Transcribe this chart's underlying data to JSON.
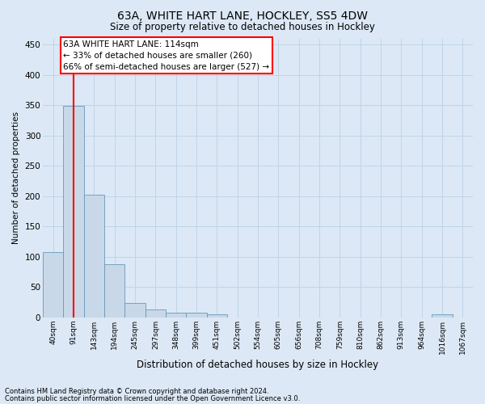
{
  "title_line1": "63A, WHITE HART LANE, HOCKLEY, SS5 4DW",
  "title_line2": "Size of property relative to detached houses in Hockley",
  "xlabel": "Distribution of detached houses by size in Hockley",
  "ylabel": "Number of detached properties",
  "categories": [
    "40sqm",
    "91sqm",
    "143sqm",
    "194sqm",
    "245sqm",
    "297sqm",
    "348sqm",
    "399sqm",
    "451sqm",
    "502sqm",
    "554sqm",
    "605sqm",
    "656sqm",
    "708sqm",
    "759sqm",
    "810sqm",
    "862sqm",
    "913sqm",
    "964sqm",
    "1016sqm",
    "1067sqm"
  ],
  "values": [
    107,
    349,
    202,
    88,
    23,
    13,
    8,
    8,
    5,
    0,
    0,
    0,
    0,
    0,
    0,
    0,
    0,
    0,
    0,
    5,
    0
  ],
  "bar_color": "#c8d8e8",
  "bar_edge_color": "#6699bb",
  "grid_color": "#c0d4e8",
  "background_color": "#dce8f5",
  "property_line_x": 1.0,
  "annotation_line1": "63A WHITE HART LANE: 114sqm",
  "annotation_line2": "← 33% of detached houses are smaller (260)",
  "annotation_line3": "66% of semi-detached houses are larger (527) →",
  "annotation_box_color": "white",
  "annotation_box_edge_color": "red",
  "property_line_color": "red",
  "ylim": [
    0,
    460
  ],
  "yticks": [
    0,
    50,
    100,
    150,
    200,
    250,
    300,
    350,
    400,
    450
  ],
  "footnote1": "Contains HM Land Registry data © Crown copyright and database right 2024.",
  "footnote2": "Contains public sector information licensed under the Open Government Licence v3.0."
}
